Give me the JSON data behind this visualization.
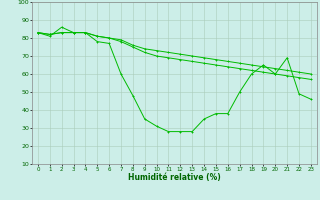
{
  "title": "",
  "xlabel": "Humidité relative (%)",
  "ylabel": "",
  "xlim": [
    -0.5,
    23.5
  ],
  "ylim": [
    10,
    100
  ],
  "yticks": [
    10,
    20,
    30,
    40,
    50,
    60,
    70,
    80,
    90,
    100
  ],
  "xticks": [
    0,
    1,
    2,
    3,
    4,
    5,
    6,
    7,
    8,
    9,
    10,
    11,
    12,
    13,
    14,
    15,
    16,
    17,
    18,
    19,
    20,
    21,
    22,
    23
  ],
  "bg_color": "#cceee8",
  "grid_color": "#aaccbb",
  "line_color": "#00bb00",
  "line1_x": [
    0,
    1,
    2,
    3,
    4,
    5,
    6,
    7,
    8,
    9,
    10,
    11,
    12,
    13,
    14,
    15,
    16,
    17,
    18,
    19,
    20,
    21,
    22,
    23
  ],
  "line1_y": [
    83,
    81,
    86,
    83,
    83,
    78,
    77,
    60,
    48,
    35,
    31,
    28,
    28,
    28,
    35,
    38,
    38,
    50,
    60,
    65,
    60,
    69,
    49,
    46
  ],
  "line2_x": [
    0,
    1,
    2,
    3,
    4,
    5,
    6,
    7,
    8,
    9,
    10,
    11,
    12,
    13,
    14,
    15,
    16,
    17,
    18,
    19,
    20,
    21,
    22,
    23
  ],
  "line2_y": [
    83,
    82,
    83,
    83,
    83,
    81,
    80,
    79,
    76,
    74,
    73,
    72,
    71,
    70,
    69,
    68,
    67,
    66,
    65,
    64,
    63,
    62,
    61,
    60
  ],
  "line3_x": [
    0,
    1,
    2,
    3,
    4,
    5,
    6,
    7,
    8,
    9,
    10,
    11,
    12,
    13,
    14,
    15,
    16,
    17,
    18,
    19,
    20,
    21,
    22,
    23
  ],
  "line3_y": [
    83,
    82,
    83,
    83,
    83,
    81,
    80,
    78,
    75,
    72,
    70,
    69,
    68,
    67,
    66,
    65,
    64,
    63,
    62,
    61,
    60,
    59,
    58,
    57
  ]
}
